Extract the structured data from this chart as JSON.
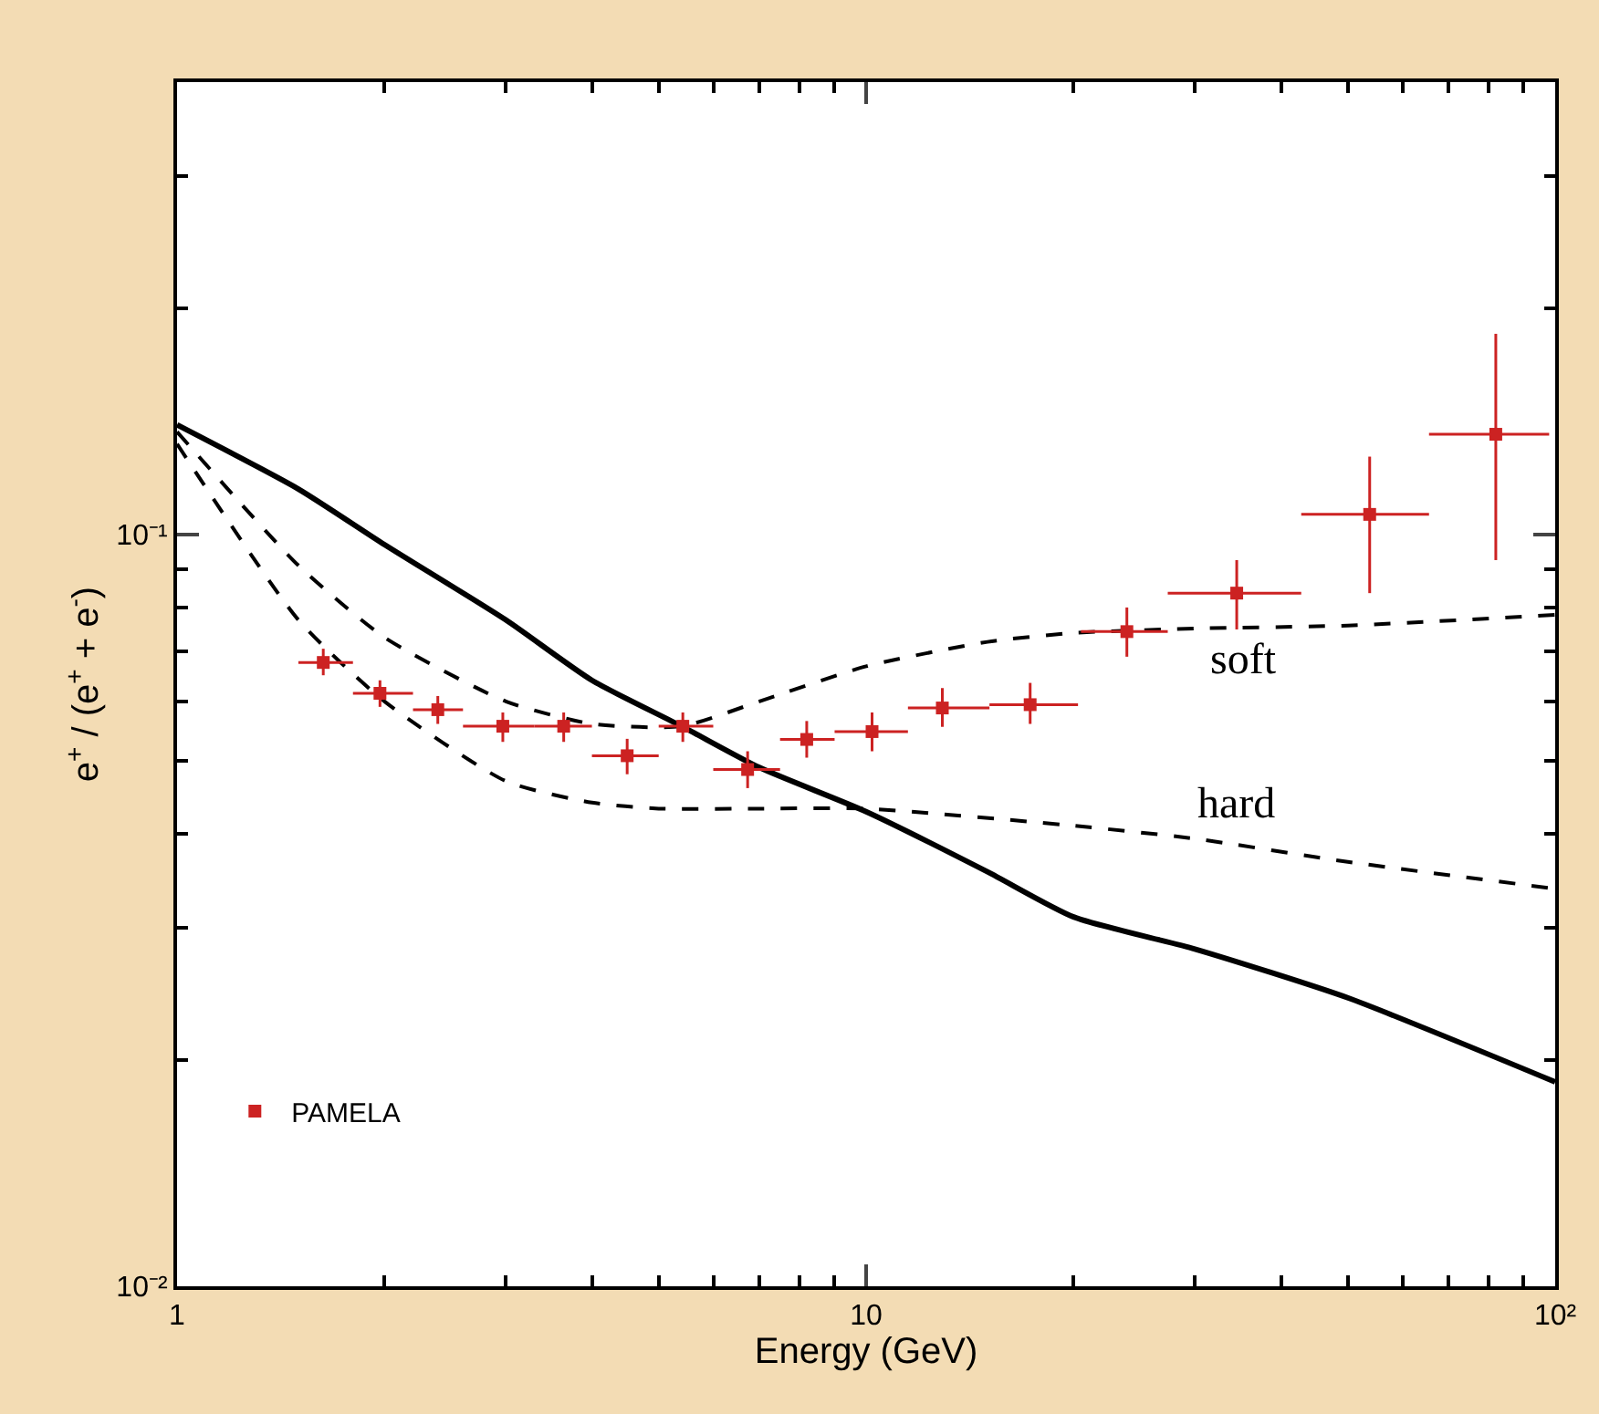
{
  "chart_data": {
    "type": "scatter",
    "xlabel": "Energy (GeV)",
    "ylabel": "e$^{+}$ / (e$^{+}$ + e$^{-}$)",
    "log": "xy",
    "xlim": [
      1,
      100
    ],
    "ylim": [
      0.01,
      0.4
    ],
    "xticks": [
      1,
      10,
      {
        "value": 100,
        "label": "10²"
      }
    ],
    "yticks": [
      {
        "value": 0.01,
        "label": "10⁻²"
      },
      {
        "value": 0.1,
        "label": "10⁻¹"
      }
    ],
    "legend": "bottom left",
    "series": [
      {
        "type": "line",
        "color": "#000000",
        "line_style": "solid",
        "marker": "none",
        "x": [
          1,
          1.5,
          2,
          3,
          4,
          5.4,
          7,
          10,
          15,
          20,
          30,
          50,
          100
        ],
        "values": [
          0.14,
          0.115,
          0.097,
          0.077,
          0.064,
          0.0556,
          0.049,
          0.0428,
          0.0356,
          0.031,
          0.0281,
          0.0242,
          0.0187
        ]
      },
      {
        "type": "line",
        "color": "#000000",
        "line_style": "dashed",
        "marker": "none",
        "x": [
          1,
          1.5,
          2,
          3,
          4,
          5.4,
          7,
          10,
          15,
          20,
          30,
          50,
          100
        ],
        "values": [
          0.137,
          0.091,
          0.073,
          0.06,
          0.056,
          0.0556,
          0.06,
          0.0668,
          0.072,
          0.074,
          0.075,
          0.0757,
          0.0782
        ]
      },
      {
        "type": "line",
        "color": "#000000",
        "line_style": "dashed",
        "marker": "none",
        "x": [
          1,
          1.5,
          2,
          3,
          4,
          5,
          7,
          10,
          20,
          30,
          50,
          100
        ],
        "values": [
          0.132,
          0.077,
          0.06,
          0.047,
          0.044,
          0.0432,
          0.0432,
          0.0432,
          0.041,
          0.0394,
          0.0367,
          0.0338
        ]
      },
      {
        "name": "PAMELA",
        "color": "#cc2222",
        "marker": "square",
        "x": [
          1.63,
          1.97,
          2.39,
          2.97,
          3.64,
          4.5,
          5.42,
          6.73,
          8.2,
          10.2,
          12.9,
          17.3,
          23.9,
          34.5,
          53.8,
          82
        ],
        "values": [
          0.0676,
          0.0615,
          0.0585,
          0.0556,
          0.0556,
          0.0508,
          0.0556,
          0.0487,
          0.0534,
          0.0547,
          0.0588,
          0.0594,
          0.0743,
          0.0836,
          0.1064,
          0.136
        ],
        "errors": [
          [
            0.065,
            0.0705
          ],
          [
            0.059,
            0.064
          ],
          [
            0.056,
            0.061
          ],
          [
            0.053,
            0.058
          ],
          [
            0.053,
            0.058
          ],
          [
            0.048,
            0.0535
          ],
          [
            0.053,
            0.058
          ],
          [
            0.046,
            0.0515
          ],
          [
            0.0505,
            0.0565
          ],
          [
            0.0515,
            0.058
          ],
          [
            0.0555,
            0.0625
          ],
          [
            0.056,
            0.0635
          ],
          [
            0.0688,
            0.08
          ],
          [
            0.0748,
            0.0925
          ],
          [
            0.0836,
            0.127
          ],
          [
            0.0925,
            0.185
          ]
        ],
        "xerrors": [
          [
            1.5,
            1.8
          ],
          [
            1.8,
            2.2
          ],
          [
            2.2,
            2.6
          ],
          [
            2.6,
            3.3
          ],
          [
            3.3,
            4.0
          ],
          [
            4.0,
            5.0
          ],
          [
            5.0,
            6.0
          ],
          [
            6.0,
            7.5
          ],
          [
            7.5,
            9.0
          ],
          [
            9.0,
            11.5
          ],
          [
            11.5,
            15.1
          ],
          [
            15.1,
            20.3
          ],
          [
            20.5,
            27.4
          ],
          [
            27.4,
            42.8
          ],
          [
            42.8,
            65.6
          ],
          [
            65.6,
            98
          ]
        ]
      }
    ],
    "annotations": [
      "soft",
      "hard"
    ]
  }
}
